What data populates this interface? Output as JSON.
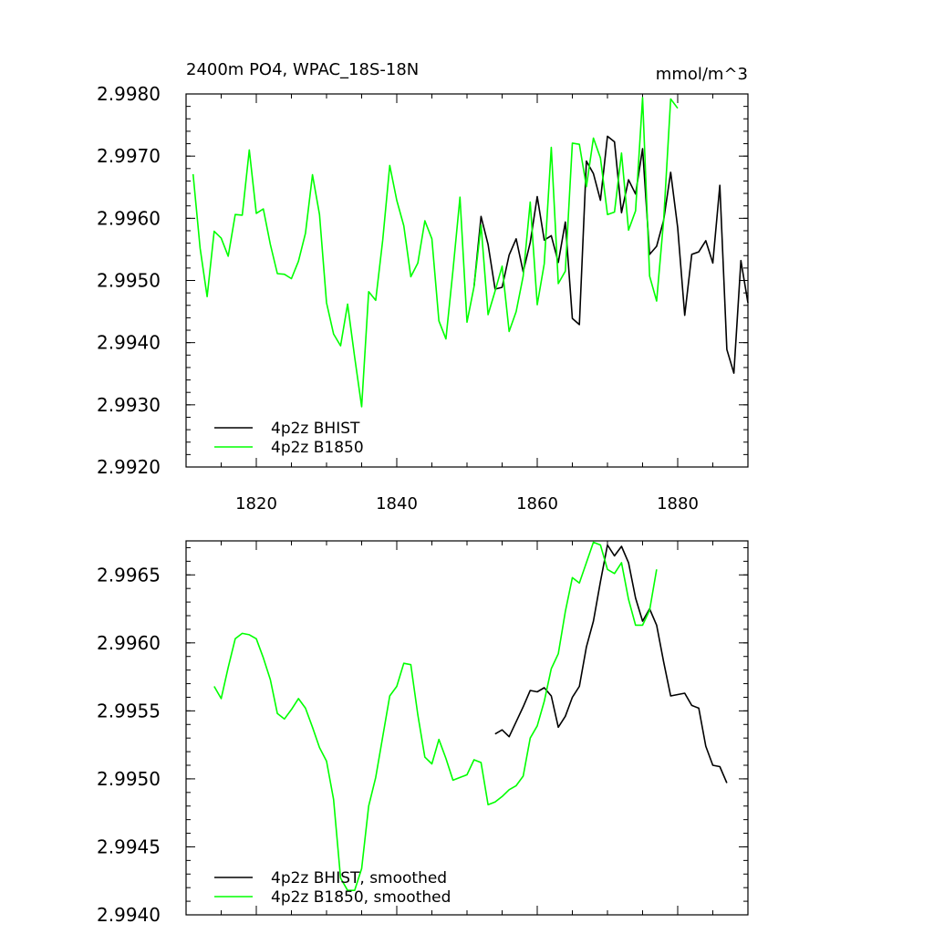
{
  "chart_data": [
    {
      "type": "line",
      "title": "2400m PO4, WPAC_18S-18N",
      "units_label": "mmol/m^3",
      "xlabel": "",
      "ylabel": "",
      "xlim": [
        1810,
        1890
      ],
      "ylim": [
        2.992,
        2.998
      ],
      "yticks": [
        "2.9920",
        "2.9930",
        "2.9940",
        "2.9950",
        "2.9960",
        "2.9970",
        "2.9980"
      ],
      "xticks": [
        "1820",
        "1840",
        "1860",
        "1880"
      ],
      "grid": false,
      "legend_position": "bottom-left",
      "series": [
        {
          "name": "4p2z BHIST",
          "color": "#000000",
          "x": [
            1851,
            1852,
            1853,
            1854,
            1855,
            1856,
            1857,
            1858,
            1859,
            1860,
            1861,
            1862,
            1863,
            1864,
            1865,
            1866,
            1867,
            1868,
            1869,
            1870,
            1871,
            1872,
            1873,
            1874,
            1875,
            1876,
            1877,
            1878,
            1879,
            1880,
            1881,
            1882,
            1883,
            1884,
            1885,
            1886,
            1887,
            1888,
            1889,
            1890
          ],
          "values": [
            2.9949,
            2.99603,
            2.99558,
            2.99486,
            2.99489,
            2.99541,
            2.99567,
            2.99514,
            2.99561,
            2.99635,
            2.99565,
            2.99572,
            2.99529,
            2.99594,
            2.99439,
            2.99429,
            2.99692,
            2.99672,
            2.99629,
            2.99732,
            2.99723,
            2.99609,
            2.99662,
            2.99639,
            2.99712,
            2.99542,
            2.99555,
            2.99597,
            2.99674,
            2.99585,
            2.99444,
            2.99542,
            2.99546,
            2.99564,
            2.99528,
            2.99653,
            2.99389,
            2.99351,
            2.99532,
            2.99464
          ]
        },
        {
          "name": "4p2z B1850",
          "color": "#00ff00",
          "x": [
            1811,
            1812,
            1813,
            1814,
            1815,
            1816,
            1817,
            1818,
            1819,
            1820,
            1821,
            1822,
            1823,
            1824,
            1825,
            1826,
            1827,
            1828,
            1829,
            1830,
            1831,
            1832,
            1833,
            1834,
            1835,
            1836,
            1837,
            1838,
            1839,
            1840,
            1841,
            1842,
            1843,
            1844,
            1845,
            1846,
            1847,
            1848,
            1849,
            1850,
            1851,
            1852,
            1853,
            1854,
            1855,
            1856,
            1857,
            1858,
            1859,
            1860,
            1861,
            1862,
            1863,
            1864,
            1865,
            1866,
            1867,
            1868,
            1869,
            1870,
            1871,
            1872,
            1873,
            1874,
            1875,
            1876,
            1877,
            1878,
            1879,
            1880
          ],
          "values": [
            2.99671,
            2.99552,
            2.99474,
            2.99579,
            2.99568,
            2.99539,
            2.99606,
            2.99605,
            2.9971,
            2.99608,
            2.99615,
            2.99558,
            2.99511,
            2.9951,
            2.99503,
            2.99531,
            2.99576,
            2.9967,
            2.99606,
            2.99464,
            2.99414,
            2.99395,
            2.99462,
            2.99377,
            2.99297,
            2.99482,
            2.99468,
            2.99565,
            2.99685,
            2.99629,
            2.99588,
            2.99506,
            2.99528,
            2.99596,
            2.99567,
            2.99435,
            2.99406,
            2.99516,
            2.99634,
            2.99433,
            2.9949,
            2.99589,
            2.99445,
            2.99483,
            2.99523,
            2.99418,
            2.9945,
            2.99507,
            2.99626,
            2.99461,
            2.99527,
            2.99714,
            2.99495,
            2.99515,
            2.99721,
            2.99719,
            2.99651,
            2.99729,
            2.99697,
            2.99606,
            2.9961,
            2.99705,
            2.99581,
            2.99612,
            2.99794,
            2.99507,
            2.99467,
            2.99597,
            2.99792,
            2.99777
          ]
        }
      ]
    },
    {
      "type": "line",
      "title": "",
      "xlabel": "",
      "ylabel": "",
      "xlim": [
        1810,
        1890
      ],
      "ylim": [
        2.994,
        2.99675
      ],
      "yticks": [
        "2.9940",
        "2.9945",
        "2.9950",
        "2.9955",
        "2.9960",
        "2.9965"
      ],
      "grid": false,
      "legend_position": "bottom-left",
      "series": [
        {
          "name": "4p2z BHIST, smoothed",
          "color": "#000000",
          "x": [
            1854,
            1855,
            1856,
            1857,
            1858,
            1859,
            1860,
            1861,
            1862,
            1863,
            1864,
            1865,
            1866,
            1867,
            1868,
            1869,
            1870,
            1871,
            1872,
            1873,
            1874,
            1875,
            1876,
            1877,
            1878,
            1879,
            1880,
            1881,
            1882,
            1883,
            1884,
            1885,
            1886,
            1887
          ],
          "values": [
            2.99533,
            2.99536,
            2.99531,
            2.99542,
            2.99553,
            2.99565,
            2.99564,
            2.99567,
            2.99561,
            2.99538,
            2.99546,
            2.9956,
            2.99568,
            2.99597,
            2.99616,
            2.99645,
            2.99672,
            2.99664,
            2.99671,
            2.99659,
            2.99633,
            2.99616,
            2.99625,
            2.99613,
            2.99586,
            2.99561,
            2.99562,
            2.99563,
            2.99554,
            2.99552,
            2.99524,
            2.9951,
            2.99509,
            2.99497
          ]
        },
        {
          "name": "4p2z B1850, smoothed",
          "color": "#00ff00",
          "x": [
            1814,
            1815,
            1816,
            1817,
            1818,
            1819,
            1820,
            1821,
            1822,
            1823,
            1824,
            1825,
            1826,
            1827,
            1828,
            1829,
            1830,
            1831,
            1832,
            1833,
            1834,
            1835,
            1836,
            1837,
            1838,
            1839,
            1840,
            1841,
            1842,
            1843,
            1844,
            1845,
            1846,
            1847,
            1848,
            1849,
            1850,
            1851,
            1852,
            1853,
            1854,
            1855,
            1856,
            1857,
            1858,
            1859,
            1860,
            1861,
            1862,
            1863,
            1864,
            1865,
            1866,
            1867,
            1868,
            1869,
            1870,
            1871,
            1872,
            1873,
            1874,
            1875,
            1876,
            1877
          ],
          "values": [
            2.99568,
            2.99559,
            2.99582,
            2.99603,
            2.99607,
            2.99606,
            2.99603,
            2.99589,
            2.99573,
            2.99548,
            2.99544,
            2.99551,
            2.99559,
            2.99552,
            2.99538,
            2.99523,
            2.99513,
            2.99485,
            2.99427,
            2.99418,
            2.99418,
            2.99434,
            2.9948,
            2.99501,
            2.99531,
            2.99561,
            2.99568,
            2.99585,
            2.99584,
            2.99547,
            2.99516,
            2.99511,
            2.99529,
            2.99515,
            2.99499,
            2.99501,
            2.99503,
            2.99514,
            2.99512,
            2.99481,
            2.99483,
            2.99487,
            2.99492,
            2.99495,
            2.99502,
            2.9953,
            2.99539,
            2.99557,
            2.99581,
            2.99592,
            2.99623,
            2.99648,
            2.99644,
            2.99659,
            2.99674,
            2.99672,
            2.99654,
            2.99651,
            2.99659,
            2.99632,
            2.99613,
            2.99613,
            2.99624,
            2.99654
          ]
        }
      ]
    }
  ]
}
